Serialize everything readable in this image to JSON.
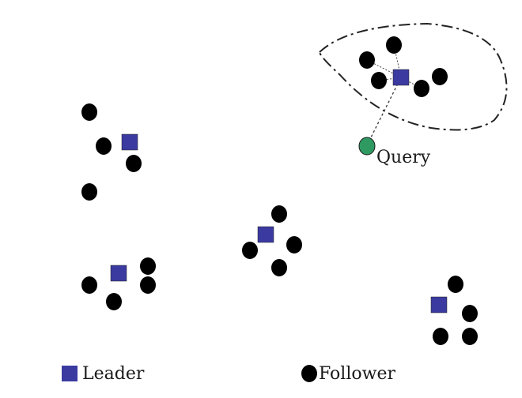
{
  "diagram": {
    "query_label": "Query",
    "legend": {
      "leader_label": "Leader",
      "follower_label": "Follower"
    },
    "colors": {
      "leader": "#3a3aa0",
      "follower": "#000000",
      "query": "#2e9a62",
      "link": "#444444"
    }
  }
}
